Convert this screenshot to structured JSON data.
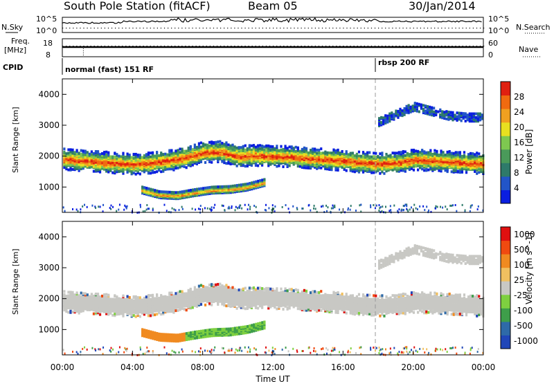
{
  "header": {
    "station": "South Pole Station (fitACF)",
    "beam": "Beam 05",
    "date": "30/Jan/2014"
  },
  "summary_labels": {
    "nsky": "N.Sky",
    "nsearch": "N.Search",
    "freq_line1": "Freq.",
    "freq_line2": "[MHz]",
    "nave": "Nave",
    "cpid": "CPID",
    "left_top": "10^5",
    "left_bottom": "10^0",
    "right_top": "10^5",
    "right_bottom": "10^0",
    "freq_top": "18",
    "freq_bottom": "8",
    "nave_top": "60",
    "nave_bottom": "0"
  },
  "cpid": {
    "left_mode": "normal (fast) 151 RF",
    "right_mode": "rbsp 200 RF"
  },
  "colors": {
    "power": [
      "#0a1ee0",
      "#2255c8",
      "#2e7a6a",
      "#4a9a5a",
      "#7ec850",
      "#e8e020",
      "#f0a020",
      "#f06a10",
      "#e02010"
    ],
    "velocity": [
      "#e01010",
      "#f04a10",
      "#f08a20",
      "#f0c060",
      "#c8c8c4",
      "#7ed040",
      "#3e9e4a",
      "#2e6aa8",
      "#2046b8"
    ],
    "ground_scatter": "#c8c8c4"
  },
  "chart_data": [
    {
      "type": "heatmap",
      "title": "Power",
      "ylabel": "Slant Range [km]",
      "xlabel": "Time UT",
      "ylim": [
        180,
        4500
      ],
      "x_ticks": [
        "00:00",
        "04:00",
        "08:00",
        "12:00",
        "16:00",
        "20:00",
        "00:00"
      ],
      "y_ticks": [
        1000,
        2000,
        3000,
        4000
      ],
      "colorbar": {
        "label": "Power [dB]",
        "ticks": [
          "4",
          "8",
          "12",
          "16",
          "20",
          "24",
          "28"
        ]
      },
      "bands": [
        {
          "name": "main echo band center (km)",
          "x_hours": [
            0,
            2,
            4,
            5,
            6,
            7,
            8,
            9,
            10,
            11,
            12,
            13,
            14,
            15,
            16,
            17,
            18,
            19,
            20,
            21,
            22,
            23,
            24
          ],
          "y_km": [
            1900,
            1820,
            1740,
            1780,
            1850,
            1960,
            2120,
            2140,
            2000,
            2020,
            2000,
            1980,
            1920,
            1900,
            1860,
            1800,
            1760,
            1780,
            1880,
            1860,
            1820,
            1780,
            1760
          ]
        },
        {
          "name": "lower band (km)",
          "x_hours": [
            4.5,
            5.5,
            6.5,
            7.5,
            8.5,
            9.5,
            10.5,
            11.5
          ],
          "y_km": [
            900,
            750,
            720,
            820,
            900,
            920,
            1000,
            1150
          ]
        },
        {
          "name": "upper band (km)",
          "x_hours": [
            18,
            19,
            20,
            21,
            22,
            23,
            24
          ],
          "y_km": [
            3100,
            3350,
            3600,
            3450,
            3300,
            3250,
            3250
          ]
        }
      ]
    },
    {
      "type": "heatmap",
      "title": "Velocity",
      "ylabel": "Slant Range [km]",
      "xlabel": "Time UT",
      "ylim": [
        180,
        4500
      ],
      "x_ticks": [
        "00:00",
        "04:00",
        "08:00",
        "12:00",
        "16:00",
        "20:00",
        "00:00"
      ],
      "y_ticks": [
        1000,
        2000,
        3000,
        4000
      ],
      "colorbar": {
        "label": "Velocity [m s^-1]",
        "ticks": [
          "1000",
          "500",
          "100",
          "25",
          "-25",
          "-100",
          "-500",
          "-1000"
        ]
      }
    }
  ]
}
